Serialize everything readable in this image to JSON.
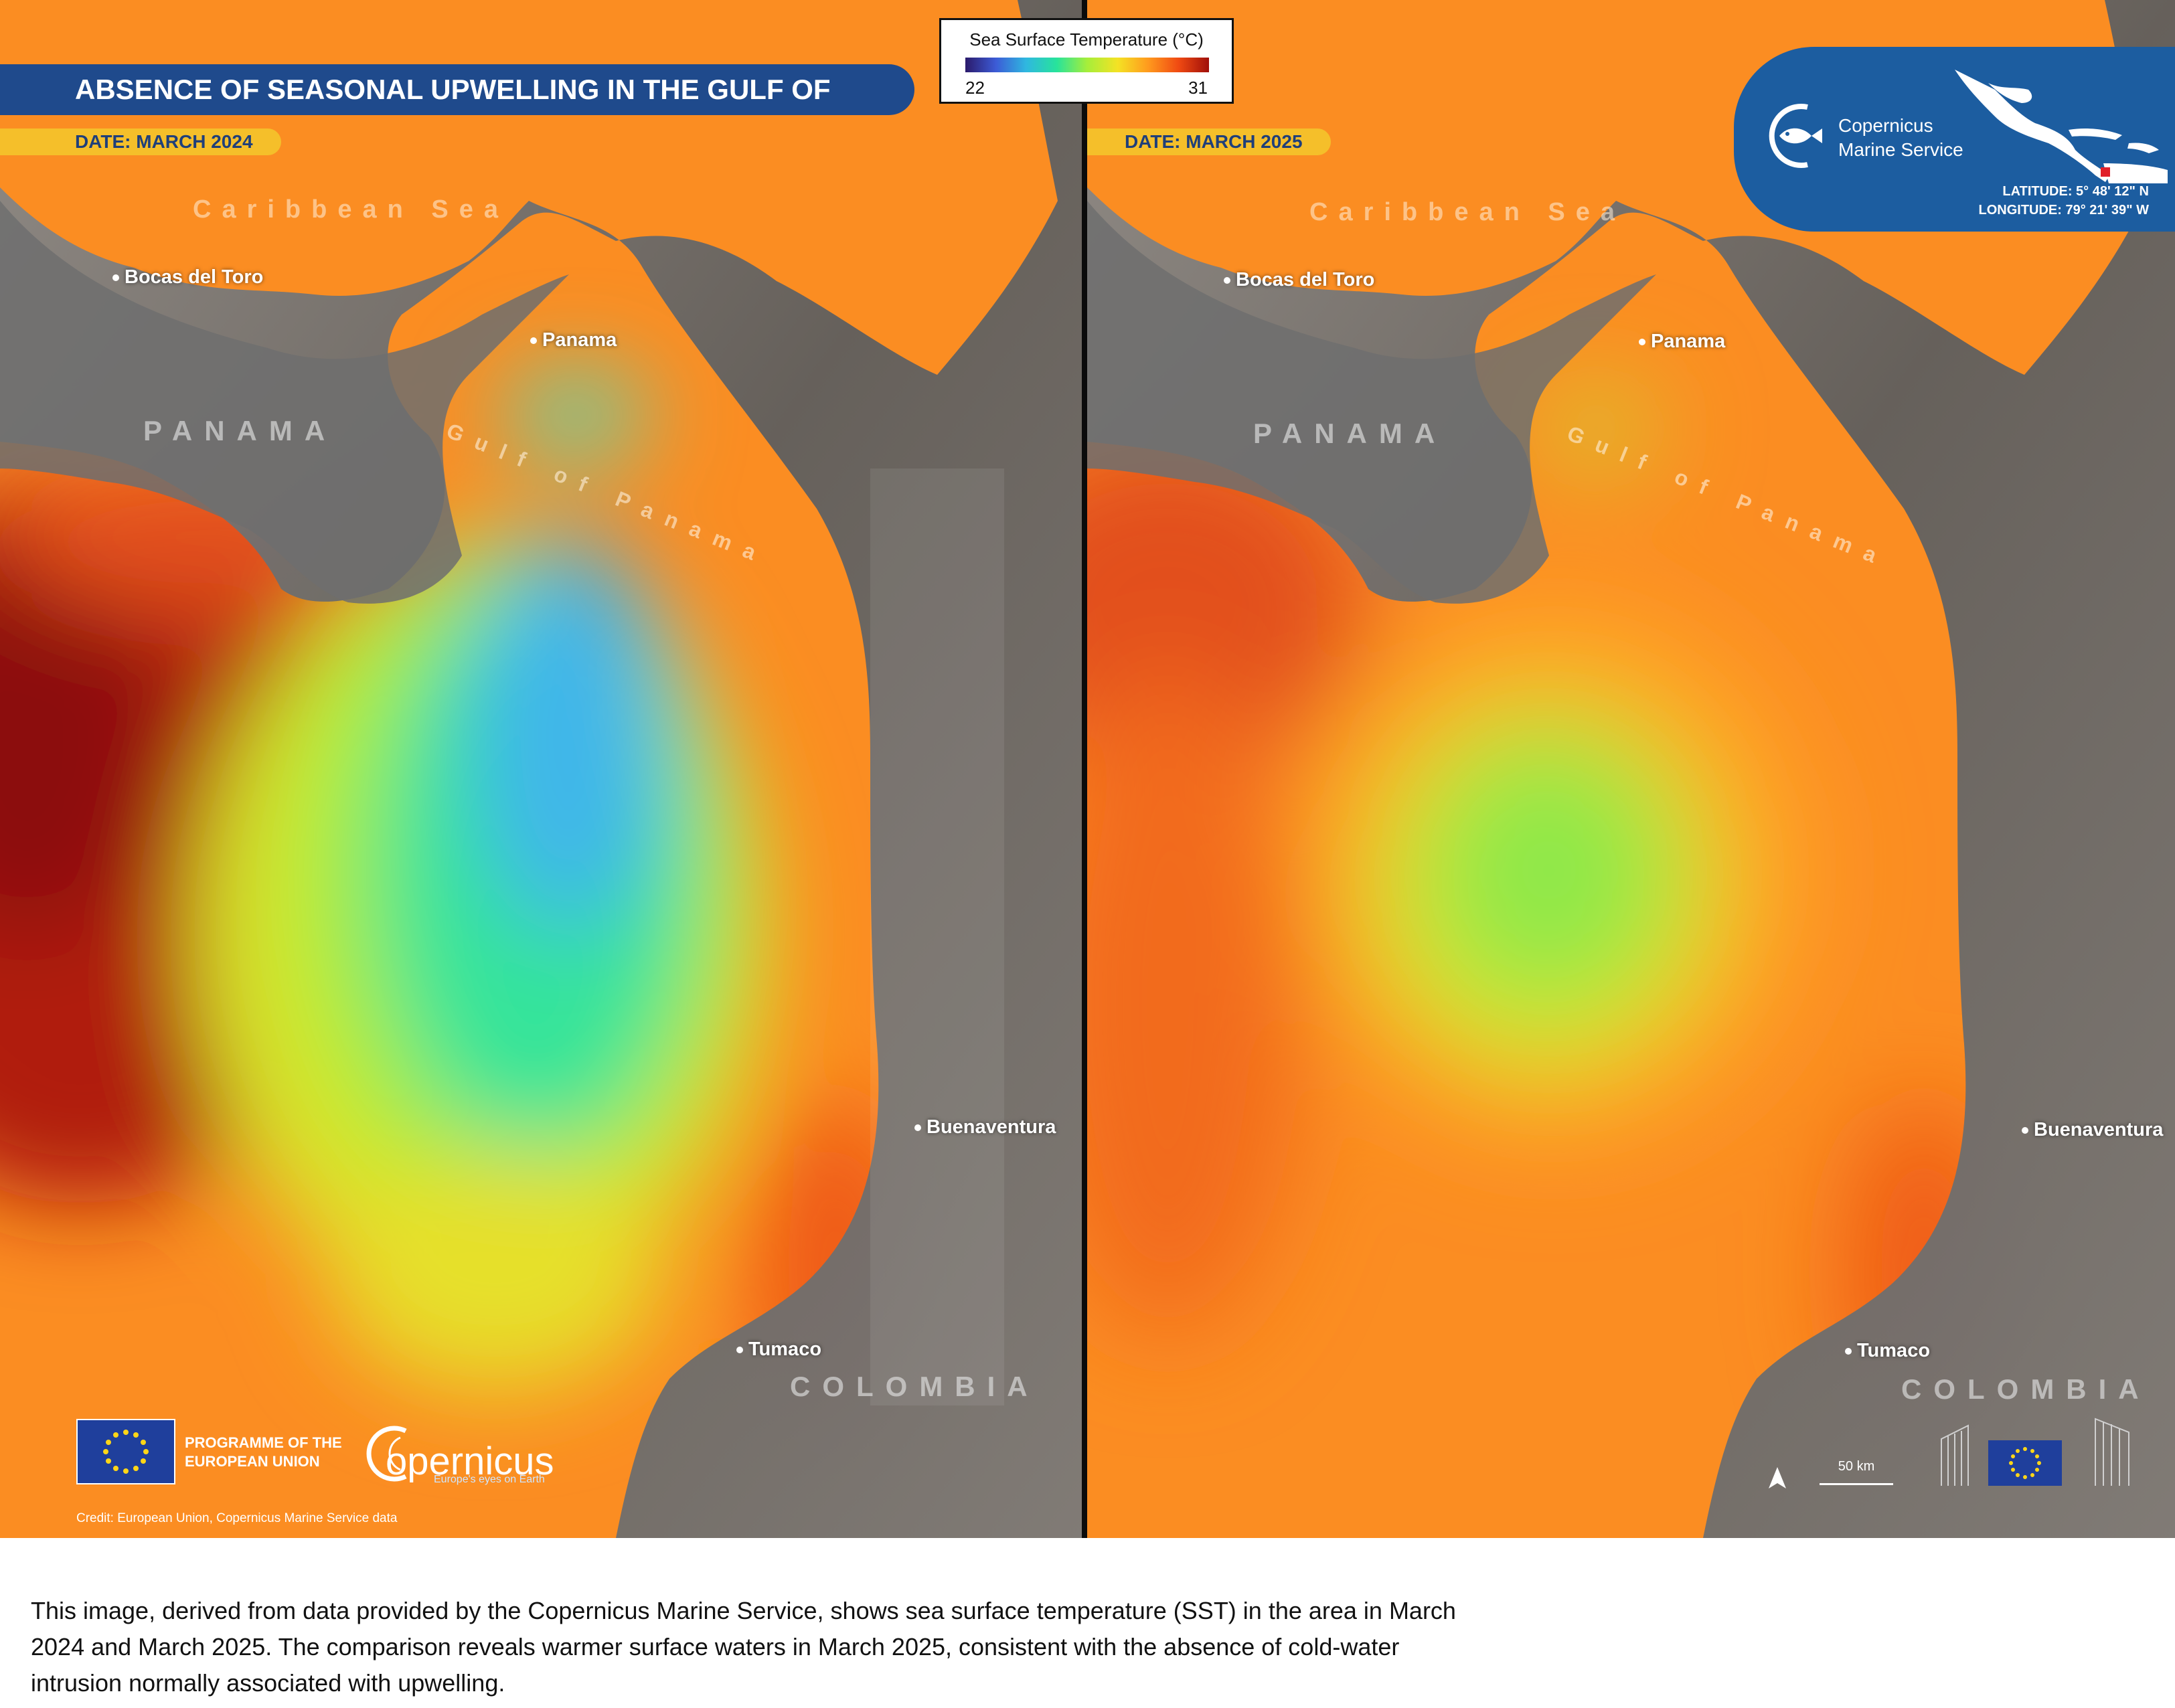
{
  "title": "ABSENCE OF SEASONAL UPWELLING IN THE GULF OF PANAMA",
  "legend": {
    "title": "Sea Surface Temperature (°C)",
    "min": "22",
    "max": "31",
    "colors": [
      "#2b1a6b",
      "#3c5bd6",
      "#2fb8e0",
      "#27e39b",
      "#a6ee3a",
      "#f4e224",
      "#ff9a1e",
      "#f04a12",
      "#a00f0a"
    ]
  },
  "panels": [
    {
      "date": "DATE: MARCH 2024"
    },
    {
      "date": "DATE: MARCH 2025"
    }
  ],
  "labels": {
    "caribbean": "Caribbean Sea",
    "panama_country": "PANAMA",
    "gulf": "Gulf of Panama",
    "colombia": "COLOMBIA",
    "cities": {
      "bocas": "Bocas del Toro",
      "panama": "Panama",
      "buenaventura": "Buenaventura",
      "tumaco": "Tumaco"
    }
  },
  "badge": {
    "name_line1": "Copernicus",
    "name_line2": "Marine Service",
    "latitude": "LATITUDE: 5° 48' 12\" N",
    "longitude": "LONGITUDE: 79° 21' 39\" W"
  },
  "footer": {
    "programme_line1": "PROGRAMME OF THE",
    "programme_line2": "EUROPEAN UNION",
    "copernicus": "opernicus",
    "copernicus_tagline": "Europe's eyes on Earth",
    "credit": "Credit: European Union, Copernicus Marine Service data",
    "scale": "50 km"
  },
  "caption": "This image, derived from data provided by the Copernicus Marine Service, shows sea surface temperature (SST) in the area in March 2024 and March 2025. The comparison reveals warmer surface waters in March 2025, consistent with the absence of cold-water intrusion normally associated with upwelling."
}
